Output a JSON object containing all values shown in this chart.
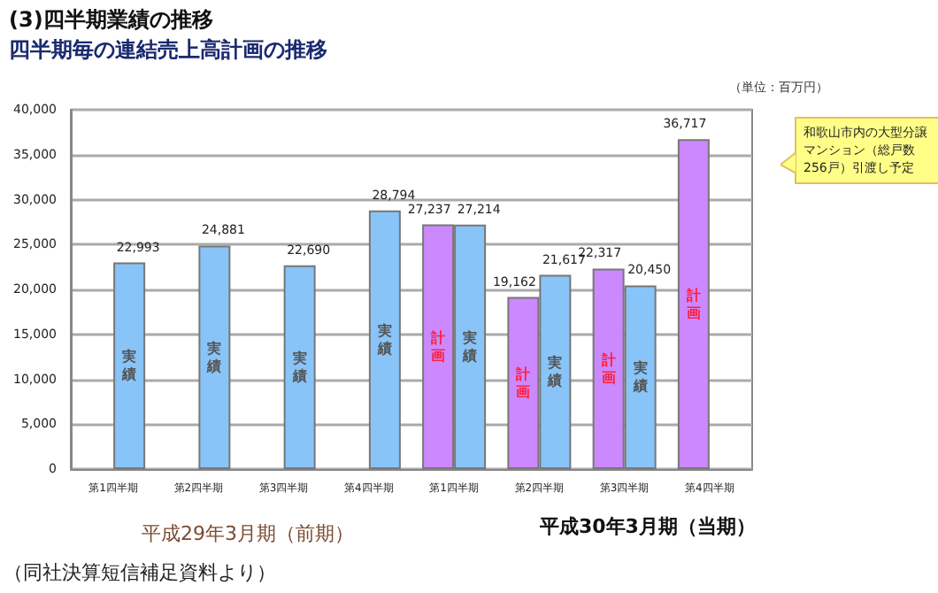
{
  "chart_data": {
    "type": "bar",
    "title": "(3)四半期業績の推移",
    "subtitle": "四半期毎の連結売上高計画の推移",
    "categories": [
      "第1四半期",
      "第2四半期",
      "第3四半期",
      "第4四半期",
      "第1四半期",
      "第2四半期",
      "第3四半期",
      "第4四半期"
    ],
    "series": [
      {
        "name": "計画",
        "color": "#cc88ff",
        "values": [
          null,
          null,
          null,
          null,
          27237,
          19162,
          22317,
          36717
        ],
        "value_labels": [
          null,
          null,
          null,
          null,
          "27,237",
          "19,162",
          "22,317",
          "36,717"
        ]
      },
      {
        "name": "実績",
        "color": "#88c4f8",
        "values": [
          22993,
          24881,
          22690,
          28794,
          27214,
          21617,
          20450,
          null
        ],
        "value_labels": [
          "22,993",
          "24,881",
          "22,690",
          "28,794",
          "27,214",
          "21,617",
          "20,450",
          null
        ]
      }
    ],
    "ylim": [
      0,
      40000
    ],
    "yticks": [
      0,
      {
        "value": 5000,
        "label": "5,000"
      },
      {
        "value": 10000,
        "label": "10,000"
      },
      {
        "value": 15000,
        "label": "15,000"
      },
      {
        "value": 20000,
        "label": "20,000"
      },
      {
        "value": 25000,
        "label": "25,000"
      },
      {
        "value": 30000,
        "label": "30,000"
      },
      {
        "value": 35000,
        "label": "35,000"
      },
      {
        "value": 40000,
        "label": "40,000"
      }
    ],
    "grid": "y",
    "legend": false,
    "annotations": [
      "（単位：百万円）",
      "平成29年3月期（前期）",
      "平成30年3月期（当期）",
      "和歌山市内の大型分譲マンション（総戸数256戸）引渡し予定",
      "（同社決算短信補足資料より）"
    ]
  }
}
